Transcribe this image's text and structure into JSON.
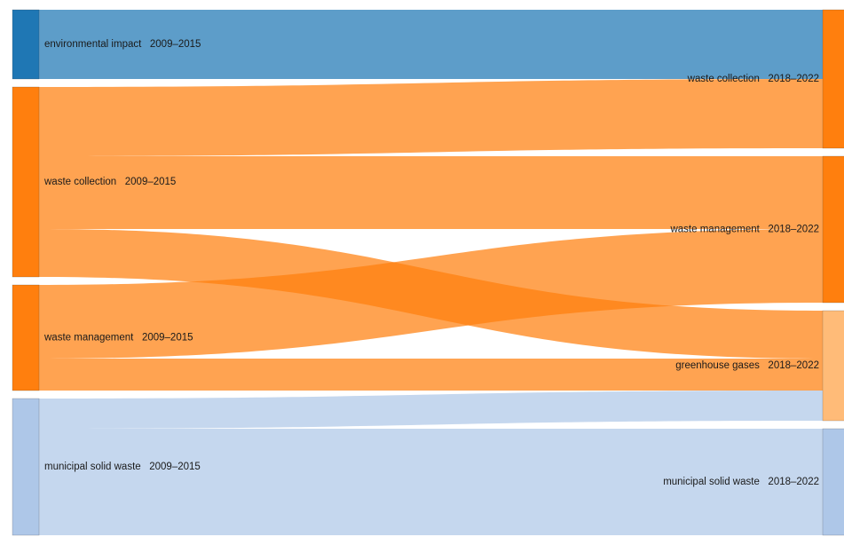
{
  "diagram": {
    "type": "sankey",
    "left_nodes": [
      {
        "id": "env_impact_2009",
        "label": "environmental impact   2009–2015",
        "color": "#1f77b4"
      },
      {
        "id": "waste_collection_2009",
        "label": "waste collection   2009–2015",
        "color": "#ff7f0e"
      },
      {
        "id": "waste_management_2009",
        "label": "waste management   2009–2015",
        "color": "#ff7f0e"
      },
      {
        "id": "msw_2009",
        "label": "municipal solid waste   2009–2015",
        "color": "#aec7e8"
      }
    ],
    "right_nodes": [
      {
        "id": "waste_collection_2018",
        "label": "waste collection   2018–2022",
        "color": "#ff7f0e"
      },
      {
        "id": "waste_management_2018",
        "label": "waste management   2018–2022",
        "color": "#ff7f0e"
      },
      {
        "id": "ghg_2018",
        "label": "greenhouse gases   2018–2022",
        "color": "#ffbb78"
      },
      {
        "id": "msw_2018",
        "label": "municipal solid waste   2018–2022",
        "color": "#aec7e8"
      }
    ],
    "links": [
      {
        "source": "env_impact_2009",
        "target": "waste_collection_2018",
        "value": 78,
        "color": "#1f77b4"
      },
      {
        "source": "waste_collection_2009",
        "target": "waste_collection_2018",
        "value": 78,
        "color": "#ff7f0e"
      },
      {
        "source": "waste_collection_2009",
        "target": "waste_management_2018",
        "value": 82,
        "color": "#ff7f0e"
      },
      {
        "source": "waste_collection_2009",
        "target": "ghg_2018",
        "value": 54,
        "color": "#ff7f0e"
      },
      {
        "source": "waste_management_2009",
        "target": "waste_management_2018",
        "value": 83,
        "color": "#ff7f0e"
      },
      {
        "source": "waste_management_2009",
        "target": "ghg_2018",
        "value": 36,
        "color": "#ff7f0e"
      },
      {
        "source": "msw_2009",
        "target": "ghg_2018",
        "value": 34,
        "color": "#aec7e8"
      },
      {
        "source": "msw_2009",
        "target": "msw_2018",
        "value": 120,
        "color": "#aec7e8"
      }
    ]
  }
}
